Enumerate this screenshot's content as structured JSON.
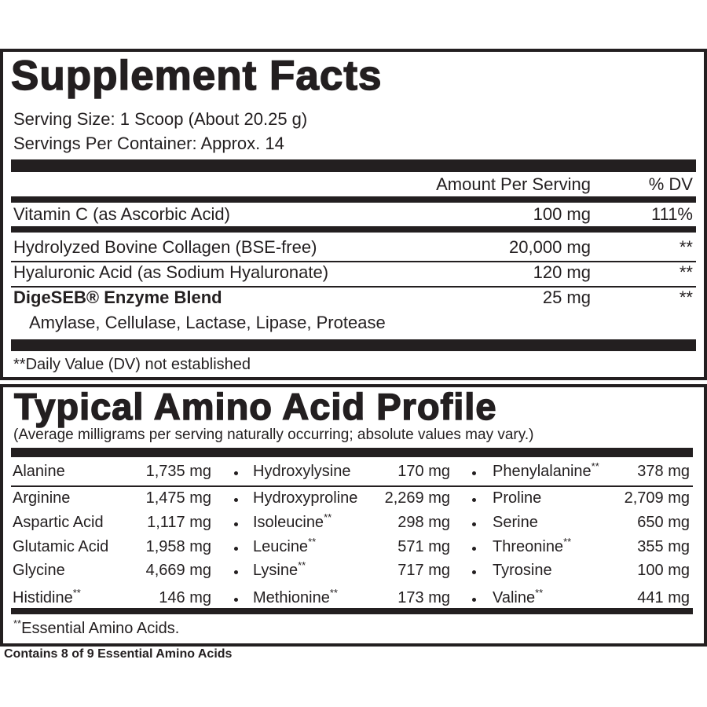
{
  "supplement_facts": {
    "title": "Supplement Facts",
    "serving_size": "Serving Size: 1 Scoop (About 20.25 g)",
    "servings_per_container": "Servings Per Container: Approx. 14",
    "header": {
      "amount": "Amount Per Serving",
      "dv": "% DV"
    },
    "rows": [
      {
        "name": "Vitamin C (as Ascorbic Acid)",
        "amount": "100 mg",
        "dv": "111%"
      },
      {
        "name": "Hydrolyzed Bovine Collagen (BSE-free)",
        "amount": "20,000 mg",
        "dv": "**"
      },
      {
        "name": "Hyaluronic Acid (as Sodium Hyaluronate)",
        "amount": "120 mg",
        "dv": "**"
      },
      {
        "name": "DigeSEB® Enzyme Blend",
        "amount": "25 mg",
        "dv": "**",
        "ingredients": "Amylase, Cellulase, Lactase, Lipase, Protease"
      }
    ],
    "footnote": "**Daily Value (DV) not established"
  },
  "amino_profile": {
    "title": "Typical Amino Acid Profile",
    "subtitle": "(Average milligrams per serving naturally occurring; absolute values may vary.)",
    "rows": [
      [
        {
          "name": "Alanine",
          "amount": "1,735 mg"
        },
        {
          "name": "Hydroxylysine",
          "amount": "170 mg"
        },
        {
          "name": "Phenylalanine",
          "mark": "**",
          "amount": "378 mg"
        }
      ],
      [
        {
          "name": "Arginine",
          "amount": "1,475 mg"
        },
        {
          "name": "Hydroxyproline",
          "amount": "2,269 mg"
        },
        {
          "name": "Proline",
          "amount": "2,709 mg"
        }
      ],
      [
        {
          "name": "Aspartic Acid",
          "amount": "1,117 mg"
        },
        {
          "name": "Isoleucine",
          "mark": "**",
          "amount": "298 mg"
        },
        {
          "name": "Serine",
          "amount": "650 mg"
        }
      ],
      [
        {
          "name": "Glutamic Acid",
          "amount": "1,958 mg"
        },
        {
          "name": "Leucine",
          "mark": "**",
          "amount": "571 mg"
        },
        {
          "name": "Threonine",
          "mark": "**",
          "amount": "355 mg"
        }
      ],
      [
        {
          "name": "Glycine",
          "amount": "4,669 mg"
        },
        {
          "name": "Lysine",
          "mark": "**",
          "amount": "717 mg"
        },
        {
          "name": "Tyrosine",
          "amount": "100 mg"
        }
      ],
      [
        {
          "name": "Histidine",
          "mark": "**",
          "amount": "146 mg"
        },
        {
          "name": "Methionine",
          "mark": "**",
          "amount": "173 mg"
        },
        {
          "name": "Valine",
          "mark": "**",
          "amount": "441 mg"
        }
      ]
    ],
    "footnote": {
      "mark": "**",
      "text": "Essential Amino Acids."
    }
  },
  "bottom_note": "Contains 8 of 9 Essential Amino Acids"
}
